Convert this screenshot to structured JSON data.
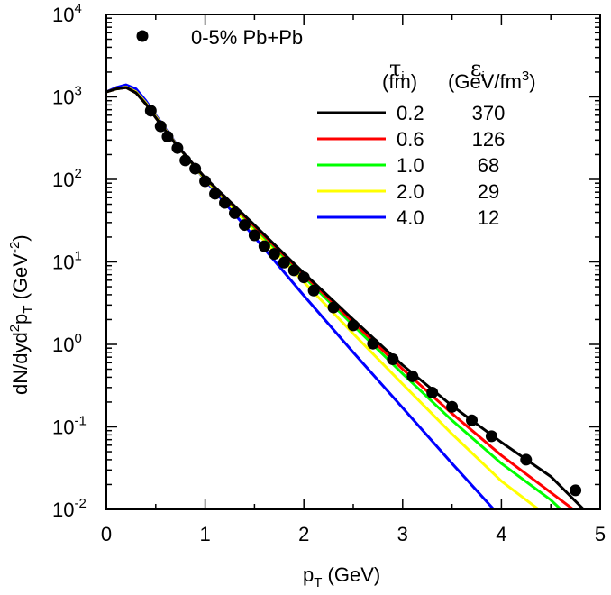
{
  "chart_data": {
    "type": "line",
    "title": "",
    "xlabel": "p",
    "xlabel_sub": "T",
    "xlabel_unit": " (GeV)",
    "ylabel_parts": [
      "dN/dyd",
      "2",
      "p",
      "T",
      " (GeV",
      "-2",
      ")"
    ],
    "xlim": [
      0,
      5
    ],
    "ylim_log10": [
      -2,
      4
    ],
    "x_ticks": [
      0,
      1,
      2,
      3,
      4,
      5
    ],
    "x_tick_labels": [
      "0",
      "1",
      "2",
      "3",
      "4",
      "5"
    ],
    "y_ticks_exp": [
      -2,
      -1,
      0,
      1,
      2,
      3,
      4
    ],
    "y_tick_base": "10",
    "y_tick_exp_labels": [
      "-2",
      "-1",
      "0",
      "1",
      "2",
      "3",
      "4"
    ],
    "data_label": "0-5% Pb+Pb",
    "data_points": {
      "x": [
        0.45,
        0.55,
        0.62,
        0.72,
        0.8,
        0.9,
        1.0,
        1.1,
        1.2,
        1.3,
        1.4,
        1.5,
        1.6,
        1.7,
        1.8,
        1.9,
        2.0,
        2.1,
        2.3,
        2.5,
        2.7,
        2.9,
        3.1,
        3.3,
        3.5,
        3.7,
        3.9,
        4.25,
        4.75
      ],
      "y": [
        680,
        440,
        330,
        240,
        170,
        135,
        95,
        67,
        52,
        39,
        28,
        21,
        15.5,
        12.5,
        9.8,
        7.9,
        6.5,
        4.5,
        2.8,
        1.7,
        1.02,
        0.66,
        0.41,
        0.26,
        0.175,
        0.12,
        0.077,
        0.04,
        0.017
      ]
    },
    "legend": {
      "header_tau": "τ",
      "header_tau_sub": "i",
      "header_tau_unit": "(fm)",
      "header_eps": "ε",
      "header_eps_sub": "i",
      "header_eps_unit": "(GeV/fm",
      "header_eps_sup": "3",
      "header_eps_close": ")",
      "tau_values": [
        "0.2",
        "0.6",
        "1.0",
        "2.0",
        "4.0"
      ],
      "eps_values": [
        "370",
        "126",
        "68",
        "29",
        "12"
      ]
    },
    "series": [
      {
        "name": "0.2",
        "color": "#000000",
        "x": [
          0,
          0.1,
          0.2,
          0.3,
          0.4,
          0.5,
          0.7,
          1.0,
          1.5,
          2.0,
          2.5,
          3.0,
          3.5,
          4.0,
          4.5,
          4.85
        ],
        "y": [
          1150,
          1250,
          1300,
          1120,
          820,
          560,
          270,
          105,
          28,
          7.3,
          2.0,
          0.56,
          0.18,
          0.065,
          0.025,
          0.0095
        ]
      },
      {
        "name": "0.6",
        "color": "#ff0000",
        "x": [
          0,
          0.1,
          0.2,
          0.3,
          0.4,
          0.5,
          0.7,
          1.0,
          1.5,
          2.0,
          2.5,
          3.0,
          3.5,
          4.0,
          4.5,
          4.75
        ],
        "y": [
          1150,
          1250,
          1300,
          1120,
          820,
          560,
          270,
          104,
          27,
          7.0,
          1.85,
          0.5,
          0.145,
          0.045,
          0.016,
          0.0095
        ]
      },
      {
        "name": "1.0",
        "color": "#00ff00",
        "x": [
          0,
          0.1,
          0.2,
          0.3,
          0.4,
          0.5,
          0.7,
          1.0,
          1.5,
          2.0,
          2.5,
          3.0,
          3.5,
          4.0,
          4.5,
          4.62
        ],
        "y": [
          1150,
          1250,
          1300,
          1120,
          820,
          560,
          270,
          103,
          26,
          6.6,
          1.7,
          0.44,
          0.12,
          0.036,
          0.013,
          0.0095
        ]
      },
      {
        "name": "2.0",
        "color": "#ffff00",
        "x": [
          0,
          0.1,
          0.2,
          0.3,
          0.4,
          0.5,
          0.7,
          1.0,
          1.5,
          2.0,
          2.5,
          3.0,
          3.5,
          4.0,
          4.4
        ],
        "y": [
          1150,
          1250,
          1320,
          1150,
          850,
          580,
          275,
          100,
          24,
          5.7,
          1.35,
          0.33,
          0.082,
          0.022,
          0.0095
        ]
      },
      {
        "name": "4.0",
        "color": "#0000ff",
        "x": [
          0,
          0.1,
          0.2,
          0.3,
          0.4,
          0.5,
          0.7,
          1.0,
          1.5,
          2.0,
          2.5,
          3.0,
          3.5,
          4.0,
          4.1
        ],
        "y": [
          1150,
          1300,
          1400,
          1250,
          900,
          600,
          280,
          98,
          20,
          3.9,
          0.8,
          0.17,
          0.036,
          0.0079,
          0.0095
        ]
      }
    ]
  }
}
